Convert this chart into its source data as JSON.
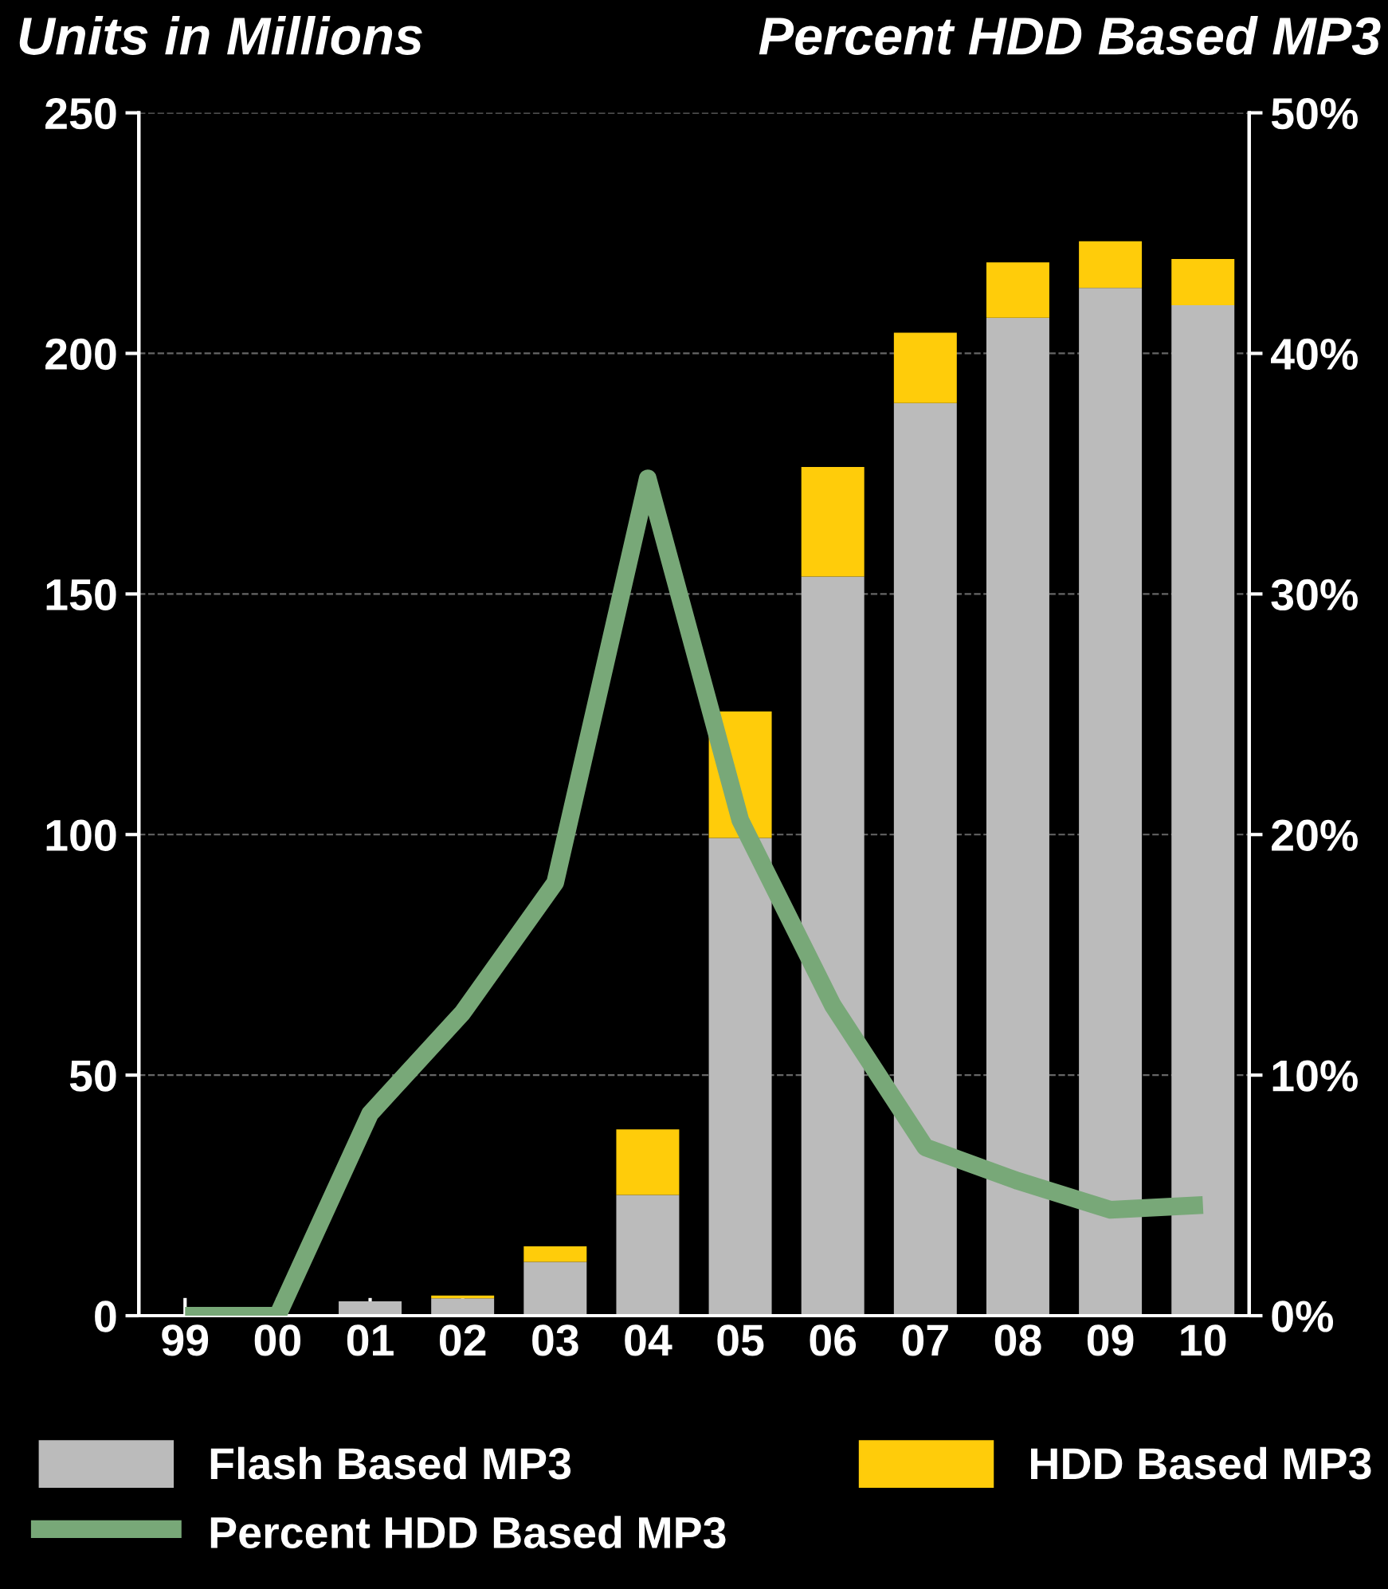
{
  "chart_data": {
    "type": "bar",
    "stacked": true,
    "ylabel": "Units in Millions",
    "y2label": "Percent HDD Based MP3",
    "categories": [
      "99",
      "00",
      "01",
      "02",
      "03",
      "04",
      "05",
      "06",
      "07",
      "08",
      "09",
      "10"
    ],
    "series": [
      {
        "name": "Flash Based MP3",
        "color": "#bbbbbb",
        "values": [
          null,
          null,
          3.0,
          3.6,
          11.2,
          25.1,
          99.3,
          153.6,
          189.7,
          207.4,
          213.6,
          210.0
        ]
      },
      {
        "name": "HDD Based MP3",
        "color": "#ffcc0a",
        "values": [
          null,
          null,
          null,
          0.6,
          3.2,
          13.6,
          26.3,
          22.8,
          14.6,
          11.5,
          9.7,
          9.6
        ]
      },
      {
        "name": "Percent HDD Based MP3",
        "color": "#78a878",
        "type": "line",
        "axis": "y2",
        "values": [
          0,
          0,
          8.4,
          12.6,
          18.0,
          34.8,
          20.6,
          12.9,
          7.0,
          5.6,
          4.4,
          4.6
        ]
      }
    ],
    "ylim": [
      0,
      250
    ],
    "yticks": [
      0,
      50,
      100,
      150,
      200,
      250
    ],
    "y2lim": [
      0,
      50
    ],
    "y2ticks": [
      {
        "value": 0,
        "label": "0%"
      },
      {
        "value": 10,
        "label": "10%"
      },
      {
        "value": 20,
        "label": "20%"
      },
      {
        "value": 30,
        "label": "30%"
      },
      {
        "value": 40,
        "label": "40%"
      },
      {
        "value": 50,
        "label": "50%"
      }
    ],
    "grid": "y",
    "legend": "bottom"
  }
}
